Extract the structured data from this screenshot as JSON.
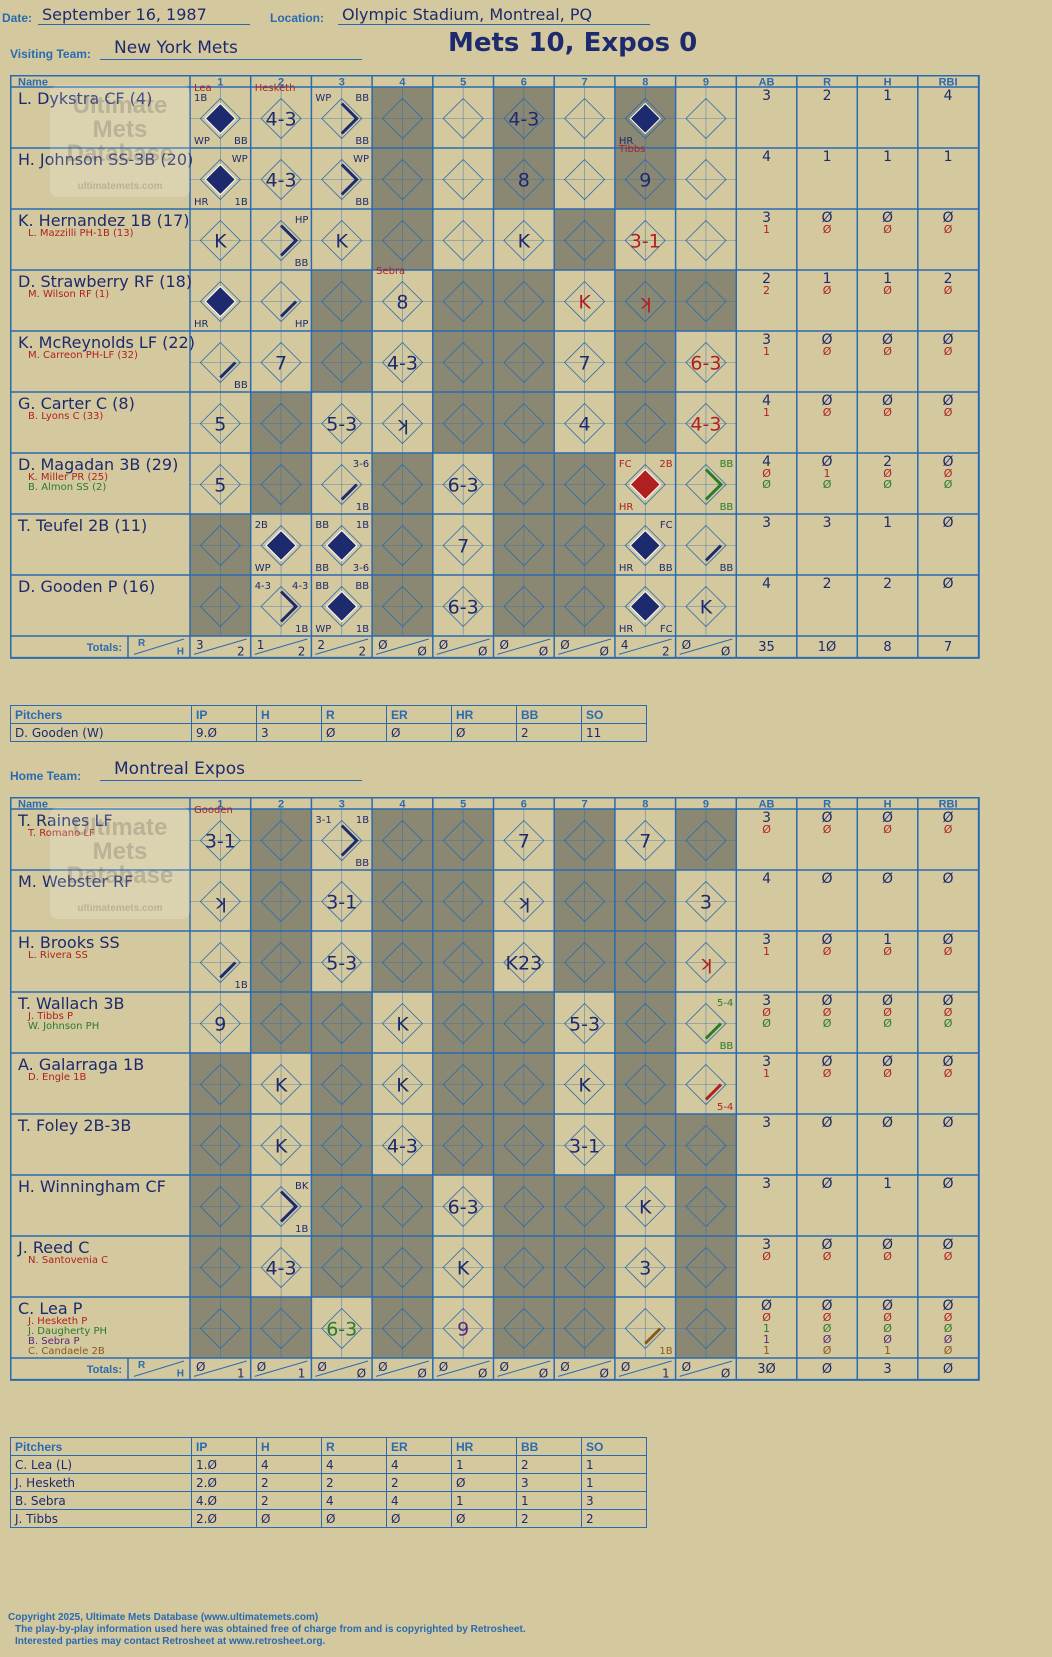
{
  "header": {
    "date_label": "Date:",
    "date": "September 16, 1987",
    "location_label": "Location:",
    "location": "Olympic Stadium, Montreal, PQ",
    "visiting_label": "Visiting Team:",
    "visiting_team": "New York Mets",
    "score_title": "Mets 10, Expos 0",
    "home_label": "Home Team:",
    "home_team": "Montreal Expos"
  },
  "watermark": [
    "Ultimate",
    "Mets",
    "Database",
    "ultimatemets.com"
  ],
  "colors": {
    "background": "#d4c99e",
    "grid": "#2a6ab0",
    "shade": "#8a8872",
    "ink": "#1d2a6e",
    "sub": "#b02020",
    "sub2": "#2a7a2a",
    "run": "#1d2a6e",
    "run_red": "#b02020"
  },
  "columns": {
    "name": "Name",
    "innings": [
      "1",
      "2",
      "3",
      "4",
      "5",
      "6",
      "7",
      "8",
      "9"
    ],
    "stats": [
      "AB",
      "R",
      "H",
      "RBI"
    ],
    "totals_label": "Totals:",
    "r": "R",
    "h": "H"
  },
  "visitors": {
    "rows": [
      {
        "names": [
          {
            "t": "L. Dykstra CF (4)",
            "c": "ink"
          }
        ],
        "stats": [
          [
            "3",
            "2",
            "1",
            "4"
          ]
        ],
        "cells": [
          {
            "run": "ink",
            "main": "",
            "tl": "1B",
            "bl": "WP",
            "br": "BB",
            "above": "Lea",
            "above_c": "sub"
          },
          {
            "main": "4-3",
            "above": "Hesketh",
            "above_c": "sub"
          },
          {
            "path": "ink",
            "tl": "WP",
            "tr": "BB",
            "br": "BB"
          },
          {},
          {},
          {
            "main": "4-3"
          },
          {},
          {
            "run": "ink",
            "bl": "HR"
          },
          {}
        ]
      },
      {
        "names": [
          {
            "t": "H. Johnson SS-3B (20)",
            "c": "ink"
          }
        ],
        "stats": [
          [
            "4",
            "1",
            "1",
            "1"
          ]
        ],
        "cells": [
          {
            "run": "ink",
            "tr": "WP",
            "bl": "HR",
            "br": "1B"
          },
          {
            "main": "4-3"
          },
          {
            "path": "ink",
            "tr": "WP",
            "br": "BB"
          },
          {},
          {},
          {
            "main": "8"
          },
          {},
          {
            "main": "9",
            "above": "Tibbs",
            "above_c": "sub"
          },
          {}
        ]
      },
      {
        "names": [
          {
            "t": "K. Hernandez 1B (17)",
            "c": "ink"
          },
          {
            "t": "L. Mazzilli PH-1B (13)",
            "c": "sub"
          }
        ],
        "stats": [
          [
            "3",
            "0",
            "0",
            "0"
          ],
          [
            "1",
            "0",
            "0",
            "0"
          ]
        ],
        "cells": [
          {
            "main": "K"
          },
          {
            "path": "ink",
            "tr": "HP",
            "br": "BB"
          },
          {
            "main": "K"
          },
          {},
          {},
          {
            "main": "K"
          },
          {},
          {
            "main": "3-1",
            "mc": "sub"
          },
          {}
        ]
      },
      {
        "names": [
          {
            "t": "D. Strawberry RF (18)",
            "c": "ink"
          },
          {
            "t": "M. Wilson RF (1)",
            "c": "sub"
          }
        ],
        "stats": [
          [
            "2",
            "1",
            "1",
            "2"
          ],
          [
            "2",
            "0",
            "0",
            "0"
          ]
        ],
        "cells": [
          {
            "run": "ink",
            "bl": "HR"
          },
          {
            "slash": "ink",
            "br": "HP"
          },
          {},
          {
            "main": "8",
            "above": "Sebra",
            "above_c": "sub"
          },
          {},
          {},
          {
            "main": "K",
            "mc": "sub"
          },
          {
            "main": "ʞ",
            "mc": "sub"
          },
          {}
        ]
      },
      {
        "names": [
          {
            "t": "K. McReynolds LF (22)",
            "c": "ink"
          },
          {
            "t": "M. Carreon PH-LF (32)",
            "c": "sub"
          }
        ],
        "stats": [
          [
            "3",
            "0",
            "0",
            "0"
          ],
          [
            "1",
            "0",
            "0",
            "0"
          ]
        ],
        "cells": [
          {
            "slash": "ink",
            "br": "BB"
          },
          {
            "main": "7"
          },
          {},
          {
            "main": "4-3"
          },
          {},
          {},
          {
            "main": "7"
          },
          {},
          {
            "main": "6-3",
            "mc": "sub"
          }
        ]
      },
      {
        "names": [
          {
            "t": "G. Carter C (8)",
            "c": "ink"
          },
          {
            "t": "B. Lyons C (33)",
            "c": "sub"
          }
        ],
        "stats": [
          [
            "4",
            "0",
            "0",
            "0"
          ],
          [
            "1",
            "0",
            "0",
            "0"
          ]
        ],
        "cells": [
          {
            "main": "5"
          },
          {},
          {
            "main": "5-3"
          },
          {
            "main": "ʞ"
          },
          {},
          {},
          {
            "main": "4"
          },
          {},
          {
            "main": "4-3",
            "mc": "sub"
          }
        ]
      },
      {
        "names": [
          {
            "t": "D. Magadan 3B (29)",
            "c": "ink"
          },
          {
            "t": "K. Miller PR (25)",
            "c": "sub"
          },
          {
            "t": "B. Almon SS (2)",
            "c": "sub2"
          }
        ],
        "stats": [
          [
            "4",
            "0",
            "2",
            "0"
          ],
          [
            "0",
            "1",
            "0",
            "0"
          ],
          [
            "0",
            "0",
            "0",
            "0"
          ]
        ],
        "cells": [
          {
            "main": "5"
          },
          {},
          {
            "slash": "ink",
            "tr": "3-6",
            "br": "1B"
          },
          {},
          {
            "main": "6-3"
          },
          {},
          {},
          {
            "run": "sub",
            "tl": "FC",
            "tr": "2B",
            "bl": "HR",
            "tlc": "sub",
            "trc": "sub",
            "blc": "sub"
          },
          {
            "path": "sub2",
            "tr": "BB",
            "br": "BB",
            "trc": "sub2",
            "brc": "sub2"
          }
        ]
      },
      {
        "names": [
          {
            "t": "T. Teufel 2B (11)",
            "c": "ink"
          }
        ],
        "stats": [
          [
            "3",
            "3",
            "1",
            "0"
          ]
        ],
        "cells": [
          {},
          {
            "run": "ink",
            "tl": "2B",
            "bl": "WP"
          },
          {
            "run": "ink",
            "tl": "BB",
            "tr": "1B",
            "bl": "BB",
            "br": "3-6"
          },
          {},
          {
            "main": "7"
          },
          {},
          {},
          {
            "run": "ink",
            "tr": "FC",
            "bl": "HR",
            "br": "BB"
          },
          {
            "slash": "ink",
            "br": "BB"
          }
        ]
      },
      {
        "names": [
          {
            "t": "D. Gooden P (16)",
            "c": "ink"
          }
        ],
        "stats": [
          [
            "4",
            "2",
            "2",
            "0"
          ]
        ],
        "cells": [
          {},
          {
            "path": "ink",
            "tl": "4-3",
            "tr": "4-3",
            "br": "1B"
          },
          {
            "run": "ink",
            "tl": "BB",
            "tr": "BB",
            "bl": "WP",
            "br": "1B"
          },
          {},
          {
            "main": "6-3"
          },
          {},
          {},
          {
            "run": "ink",
            "bl": "HR",
            "br": "FC"
          },
          {
            "main": "K"
          }
        ]
      }
    ],
    "shade": [
      [
        4,
        6,
        8
      ],
      [
        4,
        6,
        8
      ],
      [
        4,
        7
      ],
      [
        3,
        5,
        6,
        8,
        9
      ],
      [
        3,
        5,
        6,
        8
      ],
      [
        2,
        5,
        6,
        8
      ],
      [
        2,
        4,
        6,
        7
      ],
      [
        1,
        4,
        6,
        7
      ],
      [
        1,
        4,
        6,
        7
      ]
    ],
    "totals": {
      "innings": [
        [
          "3",
          "2"
        ],
        [
          "1",
          "2"
        ],
        [
          "2",
          "2"
        ],
        [
          "0",
          "0"
        ],
        [
          "0",
          "0"
        ],
        [
          "0",
          "0"
        ],
        [
          "0",
          "0"
        ],
        [
          "4",
          "2"
        ],
        [
          "0",
          "0"
        ]
      ],
      "stats": [
        "35",
        "10",
        "8",
        "7"
      ]
    }
  },
  "visitor_pitchers": {
    "header": [
      "Pitchers",
      "IP",
      "H",
      "R",
      "ER",
      "HR",
      "BB",
      "SO"
    ],
    "rows": [
      [
        "D. Gooden (W)",
        "9.0",
        "3",
        "0",
        "0",
        "0",
        "2",
        "11"
      ]
    ]
  },
  "home": {
    "rows": [
      {
        "names": [
          {
            "t": "T. Raines LF",
            "c": "ink"
          },
          {
            "t": "T. Romano LF",
            "c": "sub"
          }
        ],
        "stats": [
          [
            "3",
            "0",
            "0",
            "0"
          ],
          [
            "0",
            "0",
            "0",
            "0"
          ]
        ],
        "cells": [
          {
            "main": "3-1",
            "above": "Gooden",
            "above_c": "sub"
          },
          {},
          {
            "path": "ink",
            "tl": "3-1",
            "tr": "1B",
            "br": "BB"
          },
          {},
          {},
          {
            "main": "7"
          },
          {},
          {
            "main": "7"
          },
          {}
        ]
      },
      {
        "names": [
          {
            "t": "M. Webster RF",
            "c": "ink"
          }
        ],
        "stats": [
          [
            "4",
            "0",
            "0",
            "0"
          ]
        ],
        "cells": [
          {
            "main": "ʞ"
          },
          {},
          {
            "main": "3-1"
          },
          {},
          {},
          {
            "main": "ʞ"
          },
          {},
          {},
          {
            "main": "3"
          }
        ]
      },
      {
        "names": [
          {
            "t": "H. Brooks SS",
            "c": "ink"
          },
          {
            "t": "L. Rivera SS",
            "c": "sub"
          }
        ],
        "stats": [
          [
            "3",
            "0",
            "1",
            "0"
          ],
          [
            "1",
            "0",
            "0",
            "0"
          ]
        ],
        "cells": [
          {
            "slash": "ink",
            "br": "1B"
          },
          {},
          {
            "main": "5-3"
          },
          {},
          {},
          {
            "main": "K23"
          },
          {},
          {},
          {
            "main": "ʞ",
            "mc": "sub"
          }
        ]
      },
      {
        "names": [
          {
            "t": "T. Wallach 3B",
            "c": "ink"
          },
          {
            "t": "J. Tibbs P",
            "c": "sub"
          },
          {
            "t": "W. Johnson PH",
            "c": "sub2"
          }
        ],
        "stats": [
          [
            "3",
            "0",
            "0",
            "0"
          ],
          [
            "0",
            "0",
            "0",
            "0"
          ],
          [
            "0",
            "0",
            "0",
            "0"
          ]
        ],
        "cells": [
          {
            "main": "9"
          },
          {},
          {},
          {
            "main": "K"
          },
          {},
          {},
          {
            "main": "5-3"
          },
          {},
          {
            "slash": "sub2",
            "tr": "5-4",
            "br": "BB",
            "trc": "sub2",
            "brc": "sub2"
          }
        ]
      },
      {
        "names": [
          {
            "t": "A. Galarraga 1B",
            "c": "ink"
          },
          {
            "t": "D. Engle 1B",
            "c": "sub"
          }
        ],
        "stats": [
          [
            "3",
            "0",
            "0",
            "0"
          ],
          [
            "1",
            "0",
            "0",
            "0"
          ]
        ],
        "cells": [
          {},
          {
            "main": "K"
          },
          {},
          {
            "main": "K"
          },
          {},
          {},
          {
            "main": "K"
          },
          {},
          {
            "slash": "sub",
            "br": "5-4",
            "brc": "sub"
          }
        ]
      },
      {
        "names": [
          {
            "t": "T. Foley 2B-3B",
            "c": "ink"
          }
        ],
        "stats": [
          [
            "3",
            "0",
            "0",
            "0"
          ]
        ],
        "cells": [
          {},
          {
            "main": "K"
          },
          {},
          {
            "main": "4-3"
          },
          {},
          {},
          {
            "main": "3-1"
          },
          {},
          {}
        ]
      },
      {
        "names": [
          {
            "t": "H. Winningham CF",
            "c": "ink"
          }
        ],
        "stats": [
          [
            "3",
            "0",
            "1",
            "0"
          ]
        ],
        "cells": [
          {},
          {
            "path": "ink",
            "tr": "BK",
            "br": "1B"
          },
          {},
          {},
          {
            "main": "6-3"
          },
          {},
          {},
          {
            "main": "K"
          },
          {}
        ]
      },
      {
        "names": [
          {
            "t": "J. Reed C",
            "c": "ink"
          },
          {
            "t": "N. Santovenia C",
            "c": "sub"
          }
        ],
        "stats": [
          [
            "3",
            "0",
            "0",
            "0"
          ],
          [
            "0",
            "0",
            "0",
            "0"
          ]
        ],
        "cells": [
          {},
          {
            "main": "4-3"
          },
          {},
          {},
          {
            "main": "K"
          },
          {},
          {},
          {
            "main": "3"
          },
          {}
        ]
      },
      {
        "names": [
          {
            "t": "C. Lea P",
            "c": "ink"
          },
          {
            "t": "J. Hesketh P",
            "c": "sub"
          },
          {
            "t": "J. Daugherty PH",
            "c": "sub2"
          },
          {
            "t": "B. Sebra P",
            "c": "purple"
          },
          {
            "t": "C. Candaele 2B",
            "c": "brown"
          }
        ],
        "stats": [
          [
            "0",
            "0",
            "0",
            "0"
          ],
          [
            "0",
            "0",
            "0",
            "0"
          ],
          [
            "1",
            "0",
            "0",
            "0"
          ],
          [
            "1",
            "0",
            "0",
            "0"
          ],
          [
            "1",
            "0",
            "1",
            "0"
          ]
        ],
        "cells": [
          {},
          {},
          {
            "main": "6-3",
            "mc": "sub2"
          },
          {},
          {
            "main": "9",
            "mc": "purple"
          },
          {},
          {},
          {
            "slash": "brown",
            "br": "1B",
            "brc": "brown"
          },
          {}
        ]
      }
    ],
    "shade": [
      [
        2,
        4,
        5,
        7,
        9
      ],
      [
        2,
        4,
        5,
        7,
        8
      ],
      [
        2,
        4,
        5,
        7,
        8
      ],
      [
        2,
        3,
        5,
        6,
        8
      ],
      [
        1,
        3,
        5,
        6,
        8
      ],
      [
        1,
        3,
        5,
        6,
        8,
        9
      ],
      [
        1,
        3,
        4,
        6,
        7,
        9
      ],
      [
        1,
        3,
        4,
        6,
        7,
        9
      ],
      [
        1,
        2,
        4,
        6,
        7,
        9
      ]
    ],
    "totals": {
      "innings": [
        [
          "0",
          "1"
        ],
        [
          "0",
          "1"
        ],
        [
          "0",
          "0"
        ],
        [
          "0",
          "0"
        ],
        [
          "0",
          "0"
        ],
        [
          "0",
          "0"
        ],
        [
          "0",
          "0"
        ],
        [
          "0",
          "1"
        ],
        [
          "0",
          "0"
        ]
      ],
      "stats": [
        "30",
        "0",
        "3",
        "0"
      ]
    }
  },
  "home_pitchers": {
    "header": [
      "Pitchers",
      "IP",
      "H",
      "R",
      "ER",
      "HR",
      "BB",
      "SO"
    ],
    "rows": [
      [
        "C. Lea (L)",
        "1.0",
        "4",
        "4",
        "4",
        "1",
        "2",
        "1"
      ],
      [
        "J. Hesketh",
        "2.0",
        "2",
        "2",
        "2",
        "0",
        "3",
        "1"
      ],
      [
        "B. Sebra",
        "4.0",
        "2",
        "4",
        "4",
        "1",
        "1",
        "3"
      ],
      [
        "J. Tibbs",
        "2.0",
        "0",
        "0",
        "0",
        "0",
        "2",
        "2"
      ]
    ]
  },
  "footer": {
    "line1": "Copyright 2025, Ultimate Mets Database (www.ultimatemets.com)",
    "line2": "The play-by-play information used here was obtained free of charge from and is copyrighted by Retrosheet.",
    "line3": "Interested parties may contact Retrosheet at www.retrosheet.org."
  }
}
